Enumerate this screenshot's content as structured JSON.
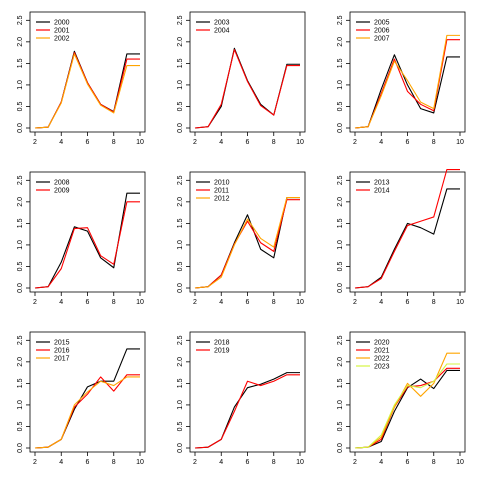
{
  "chart_data": [
    {
      "type": "line",
      "x": [
        2,
        3,
        4,
        5,
        6,
        7,
        8,
        9,
        10
      ],
      "x_ticks": [
        2,
        4,
        6,
        8,
        10
      ],
      "y_ticks": [
        0.0,
        0.5,
        1.0,
        1.5,
        2.0,
        2.5
      ],
      "xlim": [
        2,
        10
      ],
      "ylim": [
        0,
        2.6
      ],
      "legend": "top-left",
      "series": [
        {
          "name": "2000",
          "color": "#000000",
          "values": [
            0.0,
            0.02,
            0.6,
            1.78,
            1.05,
            0.55,
            0.38,
            1.72,
            1.72
          ]
        },
        {
          "name": "2001",
          "color": "#ff0000",
          "values": [
            0.0,
            0.02,
            0.6,
            1.75,
            1.05,
            0.55,
            0.37,
            1.6,
            1.6
          ]
        },
        {
          "name": "2002",
          "color": "#ffa500",
          "values": [
            0.0,
            0.02,
            0.58,
            1.72,
            1.02,
            0.53,
            0.35,
            1.45,
            1.45
          ]
        }
      ]
    },
    {
      "type": "line",
      "x": [
        2,
        3,
        4,
        5,
        6,
        7,
        8,
        9,
        10
      ],
      "x_ticks": [
        2,
        4,
        6,
        8,
        10
      ],
      "y_ticks": [
        0.0,
        0.5,
        1.0,
        1.5,
        2.0,
        2.5
      ],
      "xlim": [
        2,
        10
      ],
      "ylim": [
        0,
        2.6
      ],
      "legend": "top-left",
      "series": [
        {
          "name": "2003",
          "color": "#000000",
          "values": [
            0.0,
            0.03,
            0.5,
            1.85,
            1.1,
            0.55,
            0.3,
            1.48,
            1.48
          ]
        },
        {
          "name": "2004",
          "color": "#ff0000",
          "values": [
            0.0,
            0.03,
            0.55,
            1.82,
            1.08,
            0.52,
            0.3,
            1.45,
            1.45
          ]
        }
      ]
    },
    {
      "type": "line",
      "x": [
        2,
        3,
        4,
        5,
        6,
        7,
        8,
        9,
        10
      ],
      "x_ticks": [
        2,
        4,
        6,
        8,
        10
      ],
      "y_ticks": [
        0.0,
        0.5,
        1.0,
        1.5,
        2.0,
        2.5
      ],
      "xlim": [
        2,
        10
      ],
      "ylim": [
        0,
        2.6
      ],
      "legend": "top-left",
      "series": [
        {
          "name": "2005",
          "color": "#000000",
          "values": [
            0.0,
            0.03,
            0.9,
            1.7,
            1.0,
            0.45,
            0.35,
            1.65,
            1.65
          ]
        },
        {
          "name": "2006",
          "color": "#ff0000",
          "values": [
            0.0,
            0.03,
            0.8,
            1.6,
            0.85,
            0.55,
            0.4,
            2.05,
            2.05
          ]
        },
        {
          "name": "2007",
          "color": "#ffa500",
          "values": [
            0.0,
            0.03,
            0.75,
            1.55,
            1.1,
            0.6,
            0.45,
            2.15,
            2.15
          ]
        }
      ]
    },
    {
      "type": "line",
      "x": [
        2,
        3,
        4,
        5,
        6,
        7,
        8,
        9,
        10
      ],
      "x_ticks": [
        2,
        4,
        6,
        8,
        10
      ],
      "y_ticks": [
        0.0,
        0.5,
        1.0,
        1.5,
        2.0,
        2.5
      ],
      "xlim": [
        2,
        10
      ],
      "ylim": [
        0,
        2.6
      ],
      "legend": "top-left",
      "series": [
        {
          "name": "2008",
          "color": "#000000",
          "values": [
            0.0,
            0.03,
            0.6,
            1.42,
            1.32,
            0.7,
            0.47,
            2.2,
            2.2
          ]
        },
        {
          "name": "2009",
          "color": "#ff0000",
          "values": [
            0.0,
            0.03,
            0.45,
            1.38,
            1.4,
            0.75,
            0.55,
            2.0,
            2.0
          ]
        }
      ]
    },
    {
      "type": "line",
      "x": [
        2,
        3,
        4,
        5,
        6,
        7,
        8,
        9,
        10
      ],
      "x_ticks": [
        2,
        4,
        6,
        8,
        10
      ],
      "y_ticks": [
        0.0,
        0.5,
        1.0,
        1.5,
        2.0,
        2.5
      ],
      "xlim": [
        2,
        10
      ],
      "ylim": [
        0,
        2.6
      ],
      "legend": "top-left",
      "series": [
        {
          "name": "2010",
          "color": "#000000",
          "values": [
            0.0,
            0.03,
            0.3,
            1.05,
            1.7,
            0.9,
            0.7,
            2.1,
            2.1
          ]
        },
        {
          "name": "2011",
          "color": "#ff0000",
          "values": [
            0.0,
            0.03,
            0.3,
            1.02,
            1.55,
            1.05,
            0.85,
            2.05,
            2.05
          ]
        },
        {
          "name": "2012",
          "color": "#ffa500",
          "values": [
            0.0,
            0.03,
            0.25,
            1.0,
            1.6,
            1.15,
            0.95,
            2.1,
            2.1
          ]
        }
      ]
    },
    {
      "type": "line",
      "x": [
        2,
        3,
        4,
        5,
        6,
        7,
        8,
        9,
        10
      ],
      "x_ticks": [
        2,
        4,
        6,
        8,
        10
      ],
      "y_ticks": [
        0.0,
        0.5,
        1.0,
        1.5,
        2.0,
        2.5
      ],
      "xlim": [
        2,
        10
      ],
      "ylim": [
        0,
        2.6
      ],
      "legend": "top-left",
      "series": [
        {
          "name": "2013",
          "color": "#000000",
          "values": [
            0.0,
            0.03,
            0.25,
            0.9,
            1.5,
            1.4,
            1.25,
            2.3,
            2.3
          ]
        },
        {
          "name": "2014",
          "color": "#ff0000",
          "values": [
            0.0,
            0.03,
            0.22,
            0.85,
            1.45,
            1.55,
            1.65,
            2.75,
            2.75
          ]
        }
      ]
    },
    {
      "type": "line",
      "x": [
        2,
        3,
        4,
        5,
        6,
        7,
        8,
        9,
        10
      ],
      "x_ticks": [
        2,
        4,
        6,
        8,
        10
      ],
      "y_ticks": [
        0.0,
        0.5,
        1.0,
        1.5,
        2.0,
        2.5
      ],
      "xlim": [
        2,
        10
      ],
      "ylim": [
        0,
        2.6
      ],
      "legend": "top-left",
      "series": [
        {
          "name": "2015",
          "color": "#000000",
          "values": [
            0.0,
            0.02,
            0.2,
            0.9,
            1.42,
            1.55,
            1.55,
            2.3,
            2.3
          ]
        },
        {
          "name": "2016",
          "color": "#ff0000",
          "values": [
            0.0,
            0.02,
            0.2,
            0.95,
            1.25,
            1.65,
            1.32,
            1.7,
            1.7
          ]
        },
        {
          "name": "2017",
          "color": "#ffa500",
          "values": [
            0.0,
            0.02,
            0.2,
            1.0,
            1.3,
            1.55,
            1.45,
            1.65,
            1.65
          ]
        }
      ]
    },
    {
      "type": "line",
      "x": [
        2,
        3,
        4,
        5,
        6,
        7,
        8,
        9,
        10
      ],
      "x_ticks": [
        2,
        4,
        6,
        8,
        10
      ],
      "y_ticks": [
        0.0,
        0.5,
        1.0,
        1.5,
        2.0,
        2.5
      ],
      "xlim": [
        2,
        10
      ],
      "ylim": [
        0,
        2.6
      ],
      "legend": "top-left",
      "series": [
        {
          "name": "2018",
          "color": "#000000",
          "values": [
            0.0,
            0.02,
            0.2,
            0.95,
            1.4,
            1.48,
            1.6,
            1.75,
            1.75
          ]
        },
        {
          "name": "2019",
          "color": "#ff0000",
          "values": [
            0.0,
            0.02,
            0.2,
            0.85,
            1.55,
            1.45,
            1.55,
            1.7,
            1.7
          ]
        }
      ]
    },
    {
      "type": "line",
      "x": [
        2,
        3,
        4,
        5,
        6,
        7,
        8,
        9,
        10
      ],
      "x_ticks": [
        2,
        4,
        6,
        8,
        10
      ],
      "y_ticks": [
        0.0,
        0.5,
        1.0,
        1.5,
        2.0,
        2.5
      ],
      "xlim": [
        2,
        10
      ],
      "ylim": [
        0,
        2.6
      ],
      "legend": "top-left",
      "series": [
        {
          "name": "2020",
          "color": "#000000",
          "values": [
            0.0,
            0.02,
            0.15,
            0.85,
            1.4,
            1.6,
            1.38,
            1.8,
            1.8
          ]
        },
        {
          "name": "2021",
          "color": "#ff0000",
          "values": [
            0.0,
            0.02,
            0.2,
            0.95,
            1.42,
            1.45,
            1.55,
            1.85,
            1.85
          ]
        },
        {
          "name": "2022",
          "color": "#ffa500",
          "values": [
            0.0,
            0.02,
            0.25,
            0.95,
            1.5,
            1.2,
            1.5,
            2.2,
            2.2
          ]
        },
        {
          "name": "2023",
          "color": "#d4f542",
          "values": [
            0.0,
            0.02,
            0.3,
            1.0,
            1.45,
            1.4,
            1.55,
            1.95,
            1.95
          ]
        }
      ]
    }
  ]
}
